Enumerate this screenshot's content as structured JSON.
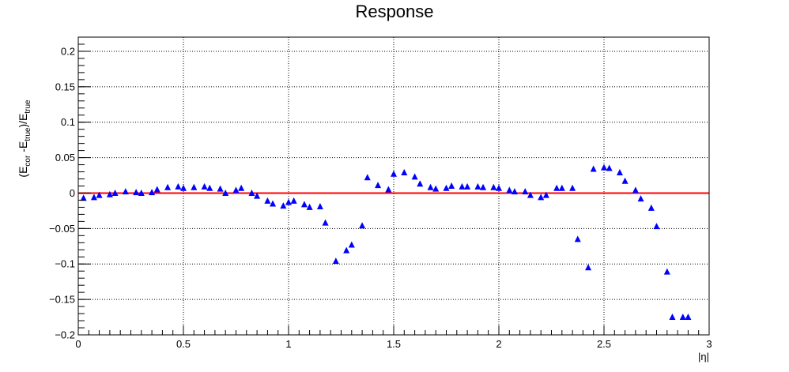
{
  "chart_data": {
    "type": "scatter",
    "title": "Response",
    "xlabel": "|η|",
    "ylabel": {
      "parts": [
        "(E",
        "cor",
        " -E",
        "true",
        ")/E",
        "true"
      ]
    },
    "xlim": [
      0,
      3
    ],
    "ylim": [
      -0.2,
      0.22
    ],
    "x_ticks": [
      0,
      0.5,
      1,
      1.5,
      2,
      2.5,
      3
    ],
    "x_tick_labels": [
      "0",
      "0.5",
      "1",
      "1.5",
      "2",
      "2.5",
      "3"
    ],
    "y_ticks": [
      -0.2,
      -0.15,
      -0.1,
      -0.05,
      0,
      0.05,
      0.1,
      0.15,
      0.2
    ],
    "y_tick_labels": [
      "−0.2",
      "−0.15",
      "−0.1",
      "−0.05",
      "0",
      "0.05",
      "0.1",
      "0.15",
      "0.2"
    ],
    "grid": true,
    "reference_line": {
      "y": 0,
      "color": "#ff0000"
    },
    "marker_color": "#0000ff",
    "marker": "triangle",
    "x": [
      0.025,
      0.075,
      0.1,
      0.15,
      0.175,
      0.225,
      0.275,
      0.3,
      0.35,
      0.375,
      0.425,
      0.475,
      0.5,
      0.55,
      0.6,
      0.625,
      0.675,
      0.7,
      0.75,
      0.775,
      0.825,
      0.85,
      0.9,
      0.925,
      0.975,
      1.0,
      1.025,
      1.075,
      1.1,
      1.15,
      1.175,
      1.225,
      1.275,
      1.3,
      1.35,
      1.375,
      1.425,
      1.475,
      1.5,
      1.55,
      1.6,
      1.625,
      1.675,
      1.7,
      1.75,
      1.775,
      1.825,
      1.85,
      1.9,
      1.925,
      1.975,
      2.0,
      2.05,
      2.075,
      2.125,
      2.15,
      2.2,
      2.225,
      2.275,
      2.3,
      2.35,
      2.375,
      2.425,
      2.45,
      2.5,
      2.525,
      2.575,
      2.6,
      2.65,
      2.675,
      2.725,
      2.75,
      2.8,
      2.825,
      2.875,
      2.9
    ],
    "y": [
      -0.007,
      -0.006,
      -0.003,
      -0.002,
      0.0,
      0.002,
      0.001,
      0.0,
      0.001,
      0.005,
      0.008,
      0.009,
      0.007,
      0.008,
      0.009,
      0.007,
      0.006,
      0.0,
      0.004,
      0.007,
      0.0,
      -0.004,
      -0.011,
      -0.015,
      -0.018,
      -0.013,
      -0.011,
      -0.016,
      -0.02,
      -0.019,
      -0.042,
      -0.096,
      -0.081,
      -0.073,
      -0.046,
      0.022,
      0.011,
      0.005,
      0.027,
      0.029,
      0.023,
      0.013,
      0.008,
      0.006,
      0.007,
      0.01,
      0.009,
      0.009,
      0.009,
      0.008,
      0.008,
      0.007,
      0.004,
      0.002,
      0.002,
      -0.003,
      -0.006,
      -0.003,
      0.007,
      0.007,
      0.007,
      -0.065,
      -0.105,
      0.034,
      0.036,
      0.035,
      0.029,
      0.017,
      0.004,
      -0.008,
      -0.021,
      -0.047,
      -0.111,
      -0.175,
      -0.175,
      -0.175
    ]
  }
}
